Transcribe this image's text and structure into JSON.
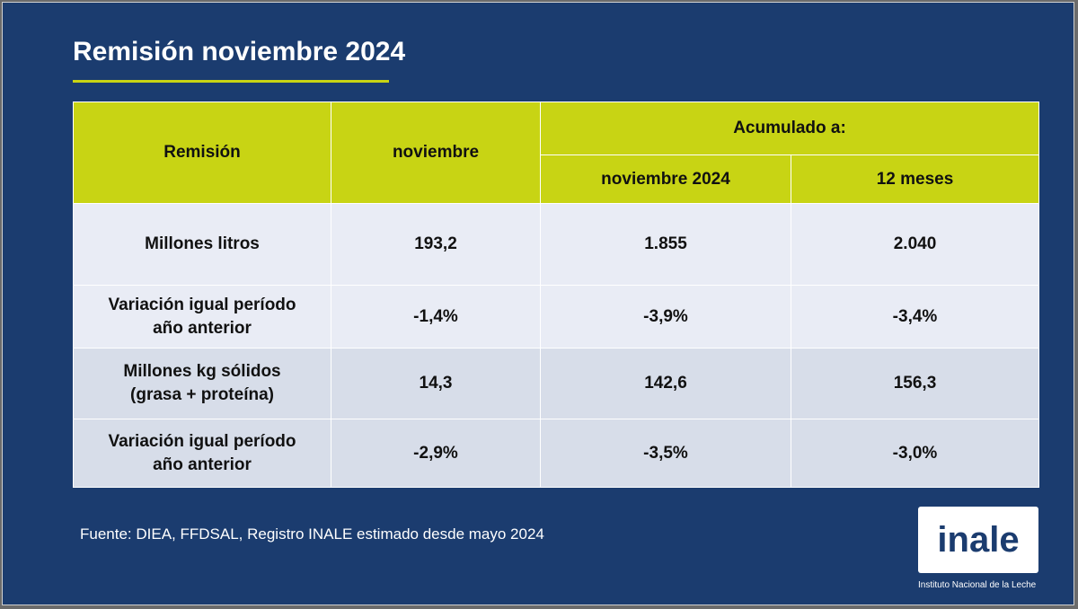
{
  "title": "Remisión noviembre 2024",
  "table": {
    "headers": {
      "remision": "Remisión",
      "noviembre": "noviembre",
      "acumulado": "Acumulado a:",
      "acum_noviembre": "noviembre 2024",
      "acum_12meses": "12 meses"
    },
    "rows": [
      {
        "label": "Millones litros",
        "noviembre": "193,2",
        "acum_noviembre": "1.855",
        "acum_12meses": "2.040"
      },
      {
        "label_line1": "Variación igual período",
        "label_line2": "año anterior",
        "noviembre": "-1,4%",
        "acum_noviembre": "-3,9%",
        "acum_12meses": "-3,4%"
      },
      {
        "label_line1": "Millones kg sólidos",
        "label_line2": "(grasa + proteína)",
        "noviembre": "14,3",
        "acum_noviembre": "142,6",
        "acum_12meses": "156,3"
      },
      {
        "label_line1": "Variación igual período",
        "label_line2": "año anterior",
        "noviembre": "-2,9%",
        "acum_noviembre": "-3,5%",
        "acum_12meses": "-3,0%"
      }
    ]
  },
  "source": "Fuente: DIEA, FFDSAL, Registro INALE estimado desde mayo 2024",
  "logo": {
    "text": "inale",
    "subtitle": "Instituto Nacional de la Leche"
  },
  "colors": {
    "background": "#1b3c6f",
    "accent": "#c8d414",
    "row_light": "#e9ecf5",
    "row_dark": "#d7dde9"
  }
}
